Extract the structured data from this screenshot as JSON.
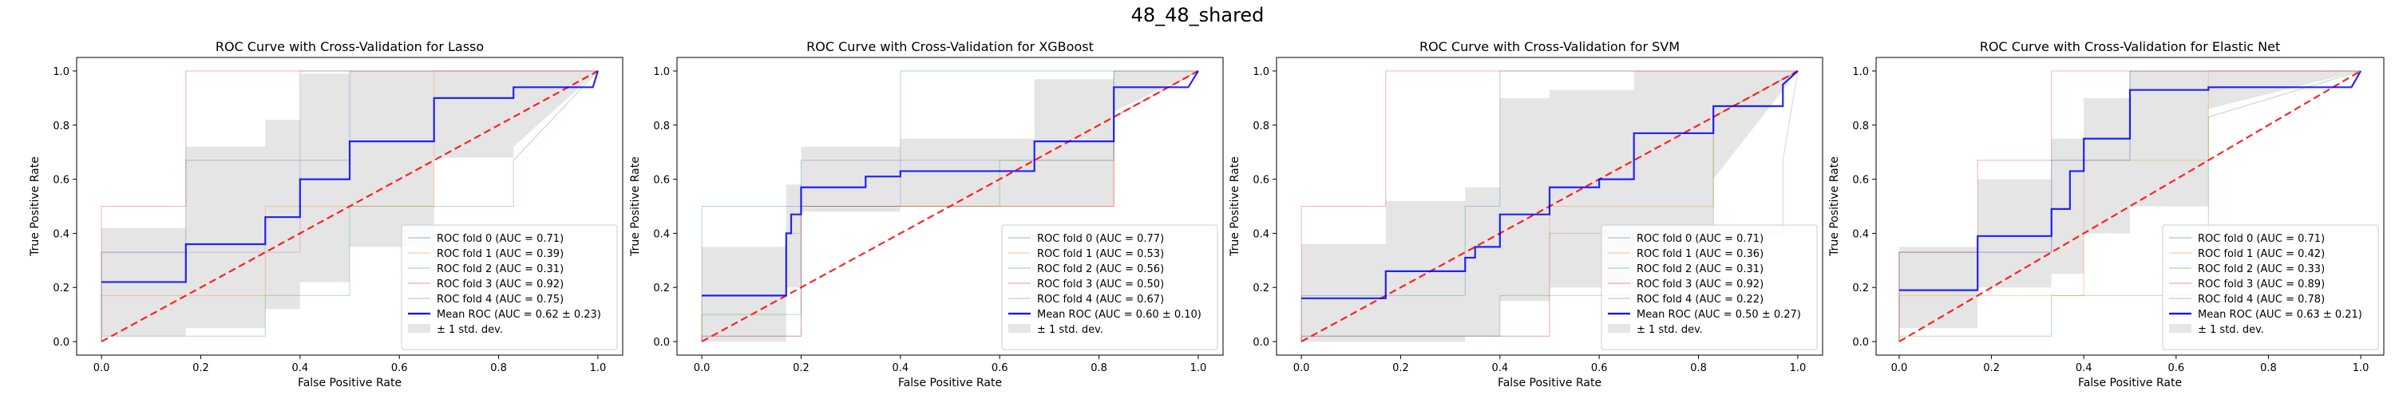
{
  "suptitle": "48_48_shared",
  "colors": {
    "folds": [
      "#1f77b4",
      "#ff7f0e",
      "#2ca02c",
      "#d62728",
      "#9467bd"
    ],
    "mean": "#0000ff",
    "chance": "#ff0000",
    "band": "#bdbdbd"
  },
  "chart_data": [
    {
      "type": "line",
      "title": "ROC Curve with Cross-Validation for Lasso",
      "xlabel": "False Positive Rate",
      "ylabel": "True Positive Rate",
      "xlim": [
        -0.05,
        1.05
      ],
      "ylim": [
        -0.05,
        1.05
      ],
      "ticks": [
        0.0,
        0.2,
        0.4,
        0.6,
        0.8,
        1.0
      ],
      "tick_labels": [
        "0.0",
        "0.2",
        "0.4",
        "0.6",
        "0.8",
        "1.0"
      ],
      "grid": false,
      "legend_position": "lower-right",
      "folds": [
        {
          "name": "ROC fold 0 (AUC = 0.71)",
          "x": [
            0,
            0,
            0.17,
            0.17,
            0.5,
            0.5,
            1
          ],
          "y": [
            0,
            0.33,
            0.33,
            0.67,
            0.67,
            1,
            1
          ]
        },
        {
          "name": "ROC fold 1 (AUC = 0.39)",
          "x": [
            0,
            0,
            0.33,
            0.33,
            0.67,
            0.67,
            1
          ],
          "y": [
            0,
            0.17,
            0.17,
            0.5,
            0.5,
            1,
            1
          ]
        },
        {
          "name": "ROC fold 2 (AUC = 0.31)",
          "x": [
            0,
            0,
            0.33,
            0.33,
            0.5,
            0.5,
            0.83,
            0.83,
            1
          ],
          "y": [
            0,
            0.02,
            0.02,
            0.17,
            0.17,
            0.5,
            0.5,
            0.67,
            1
          ]
        },
        {
          "name": "ROC fold 3 (AUC = 0.92)",
          "x": [
            0,
            0,
            0.17,
            0.17,
            1
          ],
          "y": [
            0,
            0.5,
            0.5,
            1,
            1
          ]
        },
        {
          "name": "ROC fold 4 (AUC = 0.75)",
          "x": [
            0,
            0,
            0.4,
            0.4,
            1
          ],
          "y": [
            0,
            0.33,
            0.33,
            1,
            1
          ]
        }
      ],
      "mean": {
        "name": "Mean ROC (AUC = 0.62 ± 0.23)",
        "x": [
          0,
          0.17,
          0.17,
          0.33,
          0.33,
          0.4,
          0.4,
          0.5,
          0.5,
          0.67,
          0.67,
          0.83,
          0.83,
          0.99,
          1.0
        ],
        "y": [
          0.22,
          0.22,
          0.36,
          0.36,
          0.46,
          0.46,
          0.6,
          0.6,
          0.74,
          0.74,
          0.9,
          0.9,
          0.94,
          0.94,
          1.0
        ]
      },
      "std_band": {
        "name": "± 1 std. dev.",
        "x": [
          0,
          0.17,
          0.17,
          0.33,
          0.33,
          0.4,
          0.4,
          0.5,
          0.5,
          0.67,
          0.67,
          0.83,
          0.83,
          1.0
        ],
        "lower": [
          0.02,
          0.02,
          0.05,
          0.05,
          0.12,
          0.12,
          0.22,
          0.22,
          0.35,
          0.35,
          0.68,
          0.68,
          0.72,
          1.0
        ],
        "upper": [
          0.42,
          0.42,
          0.72,
          0.72,
          0.82,
          0.82,
          0.99,
          0.99,
          1.0,
          1.0,
          1.0,
          1.0,
          1.0,
          1.0
        ]
      },
      "chance": {
        "x": [
          0,
          1
        ],
        "y": [
          0,
          1
        ]
      }
    },
    {
      "type": "line",
      "title": "ROC Curve with Cross-Validation for XGBoost",
      "xlabel": "False Positive Rate",
      "ylabel": "True Positive Rate",
      "xlim": [
        -0.05,
        1.05
      ],
      "ylim": [
        -0.05,
        1.05
      ],
      "ticks": [
        0.0,
        0.2,
        0.4,
        0.6,
        0.8,
        1.0
      ],
      "tick_labels": [
        "0.0",
        "0.2",
        "0.4",
        "0.6",
        "0.8",
        "1.0"
      ],
      "grid": false,
      "legend_position": "lower-right",
      "folds": [
        {
          "name": "ROC fold 0 (AUC = 0.77)",
          "x": [
            0,
            0,
            0.2,
            0.2,
            0.4,
            0.4,
            1
          ],
          "y": [
            0,
            0.5,
            0.5,
            0.67,
            0.67,
            1,
            1
          ]
        },
        {
          "name": "ROC fold 1 (AUC = 0.53)",
          "x": [
            0,
            0,
            0.17,
            0.17,
            0.2,
            0.2,
            0.83,
            0.83,
            1
          ],
          "y": [
            0,
            0.17,
            0.17,
            0.4,
            0.4,
            0.5,
            0.5,
            0.83,
            1
          ]
        },
        {
          "name": "ROC fold 2 (AUC = 0.56)",
          "x": [
            0,
            0,
            0.2,
            0.2,
            0.6,
            0.6,
            0.83,
            0.83,
            1
          ],
          "y": [
            0,
            0.1,
            0.1,
            0.5,
            0.5,
            0.67,
            0.67,
            1,
            1
          ]
        },
        {
          "name": "ROC fold 3 (AUC = 0.50)",
          "x": [
            0,
            0,
            0.2,
            0.2,
            0.83,
            0.83,
            1
          ],
          "y": [
            0,
            0.02,
            0.02,
            0.5,
            0.5,
            0.83,
            1
          ]
        },
        {
          "name": "ROC fold 4 (AUC = 0.67)",
          "x": [
            0,
            0,
            0.2,
            0.2,
            0.4,
            0.4,
            0.83,
            0.83,
            1
          ],
          "y": [
            0,
            0.02,
            0.02,
            0.5,
            0.5,
            0.67,
            0.67,
            1,
            1
          ]
        }
      ],
      "mean": {
        "name": "Mean ROC (AUC = 0.60 ± 0.10)",
        "x": [
          0,
          0.17,
          0.17,
          0.18,
          0.18,
          0.2,
          0.2,
          0.33,
          0.33,
          0.4,
          0.4,
          0.67,
          0.67,
          0.83,
          0.83,
          0.98,
          1.0
        ],
        "y": [
          0.17,
          0.17,
          0.4,
          0.4,
          0.47,
          0.47,
          0.57,
          0.57,
          0.61,
          0.61,
          0.63,
          0.63,
          0.74,
          0.74,
          0.94,
          0.94,
          1.0
        ]
      },
      "std_band": {
        "name": "± 1 std. dev.",
        "x": [
          0,
          0.17,
          0.17,
          0.2,
          0.2,
          0.4,
          0.4,
          0.67,
          0.67,
          0.83,
          0.83,
          1.0
        ],
        "lower": [
          0.0,
          0.0,
          0.2,
          0.2,
          0.48,
          0.48,
          0.5,
          0.5,
          0.5,
          0.5,
          0.85,
          1.0
        ],
        "upper": [
          0.35,
          0.35,
          0.58,
          0.58,
          0.72,
          0.72,
          0.75,
          0.75,
          0.97,
          0.97,
          1.0,
          1.0
        ]
      },
      "chance": {
        "x": [
          0,
          1
        ],
        "y": [
          0,
          1
        ]
      }
    },
    {
      "type": "line",
      "title": "ROC Curve with Cross-Validation for SVM",
      "xlabel": "False Positive Rate",
      "ylabel": "True Positive Rate",
      "xlim": [
        -0.05,
        1.05
      ],
      "ylim": [
        -0.05,
        1.05
      ],
      "ticks": [
        0.0,
        0.2,
        0.4,
        0.6,
        0.8,
        1.0
      ],
      "tick_labels": [
        "0.0",
        "0.2",
        "0.4",
        "0.6",
        "0.8",
        "1.0"
      ],
      "grid": false,
      "legend_position": "lower-right",
      "folds": [
        {
          "name": "ROC fold 0 (AUC = 0.71)",
          "x": [
            0,
            0,
            0.33,
            0.33,
            0.4,
            0.4,
            1
          ],
          "y": [
            0,
            0.17,
            0.17,
            0.5,
            0.5,
            1,
            1
          ]
        },
        {
          "name": "ROC fold 1 (AUC = 0.36)",
          "x": [
            0,
            0,
            0.5,
            0.5,
            0.83,
            0.83,
            1
          ],
          "y": [
            0,
            0.02,
            0.02,
            0.5,
            0.5,
            0.83,
            1
          ]
        },
        {
          "name": "ROC fold 2 (AUC = 0.31)",
          "x": [
            0,
            0,
            0.4,
            0.4,
            0.83,
            0.83,
            1
          ],
          "y": [
            0,
            0.02,
            0.02,
            0.17,
            0.17,
            0.83,
            1
          ]
        },
        {
          "name": "ROC fold 3 (AUC = 0.92)",
          "x": [
            0,
            0,
            0.17,
            0.17,
            1
          ],
          "y": [
            0,
            0.5,
            0.5,
            1,
            1
          ]
        },
        {
          "name": "ROC fold 4 (AUC = 0.22)",
          "x": [
            0,
            0,
            0.5,
            0.5,
            0.97,
            0.97,
            1
          ],
          "y": [
            0,
            0.02,
            0.02,
            0.4,
            0.4,
            0.67,
            1
          ]
        }
      ],
      "mean": {
        "name": "Mean ROC (AUC = 0.50 ± 0.27)",
        "x": [
          0,
          0.17,
          0.17,
          0.33,
          0.33,
          0.35,
          0.35,
          0.4,
          0.4,
          0.5,
          0.5,
          0.6,
          0.6,
          0.67,
          0.67,
          0.83,
          0.83,
          0.97,
          0.97,
          1.0
        ],
        "y": [
          0.16,
          0.16,
          0.26,
          0.26,
          0.31,
          0.31,
          0.35,
          0.35,
          0.47,
          0.47,
          0.57,
          0.57,
          0.6,
          0.6,
          0.77,
          0.77,
          0.87,
          0.87,
          0.95,
          1.0
        ]
      },
      "std_band": {
        "name": "± 1 std. dev.",
        "x": [
          0,
          0.17,
          0.17,
          0.33,
          0.33,
          0.4,
          0.4,
          0.5,
          0.5,
          0.67,
          0.67,
          0.83,
          0.83,
          1.0
        ],
        "lower": [
          0.0,
          0.0,
          0.0,
          0.0,
          0.02,
          0.02,
          0.15,
          0.15,
          0.2,
          0.2,
          0.38,
          0.38,
          0.6,
          1.0
        ],
        "upper": [
          0.36,
          0.36,
          0.52,
          0.52,
          0.57,
          0.57,
          0.9,
          0.9,
          0.93,
          0.93,
          1.0,
          1.0,
          1.0,
          1.0
        ]
      },
      "chance": {
        "x": [
          0,
          1
        ],
        "y": [
          0,
          1
        ]
      }
    },
    {
      "type": "line",
      "title": "ROC Curve with Cross-Validation for Elastic Net",
      "xlabel": "False Positive Rate",
      "ylabel": "True Positive Rate",
      "xlim": [
        -0.05,
        1.05
      ],
      "ylim": [
        -0.05,
        1.05
      ],
      "ticks": [
        0.0,
        0.2,
        0.4,
        0.6,
        0.8,
        1.0
      ],
      "tick_labels": [
        "0.0",
        "0.2",
        "0.4",
        "0.6",
        "0.8",
        "1.0"
      ],
      "grid": false,
      "legend_position": "lower-right",
      "folds": [
        {
          "name": "ROC fold 0 (AUC = 0.71)",
          "x": [
            0,
            0,
            0.33,
            0.33,
            0.5,
            0.5,
            1
          ],
          "y": [
            0,
            0.33,
            0.33,
            0.67,
            0.67,
            1,
            1
          ]
        },
        {
          "name": "ROC fold 1 (AUC = 0.42)",
          "x": [
            0,
            0,
            0.4,
            0.4,
            0.67,
            0.67,
            1
          ],
          "y": [
            0,
            0.17,
            0.17,
            0.67,
            0.67,
            1,
            1
          ]
        },
        {
          "name": "ROC fold 2 (AUC = 0.33)",
          "x": [
            0,
            0,
            0.33,
            0.33,
            0.67,
            0.67,
            1
          ],
          "y": [
            0,
            0.02,
            0.02,
            0.17,
            0.17,
            0.83,
            1
          ]
        },
        {
          "name": "ROC fold 3 (AUC = 0.89)",
          "x": [
            0,
            0,
            0.17,
            0.17,
            0.33,
            0.33,
            1
          ],
          "y": [
            0,
            0.33,
            0.33,
            0.67,
            0.67,
            1,
            1
          ]
        },
        {
          "name": "ROC fold 4 (AUC = 0.78)",
          "x": [
            0,
            0,
            0.33,
            0.33,
            0.5,
            0.5,
            1
          ],
          "y": [
            0,
            0.33,
            0.33,
            0.67,
            0.67,
            1,
            1
          ]
        }
      ],
      "mean": {
        "name": "Mean ROC (AUC = 0.63 ± 0.21)",
        "x": [
          0,
          0.17,
          0.17,
          0.33,
          0.33,
          0.37,
          0.37,
          0.4,
          0.4,
          0.5,
          0.5,
          0.67,
          0.67,
          0.98,
          1.0
        ],
        "y": [
          0.19,
          0.19,
          0.39,
          0.39,
          0.49,
          0.49,
          0.63,
          0.63,
          0.75,
          0.75,
          0.93,
          0.93,
          0.94,
          0.94,
          1.0
        ]
      },
      "std_band": {
        "name": "± 1 std. dev.",
        "x": [
          0,
          0.17,
          0.17,
          0.33,
          0.33,
          0.4,
          0.4,
          0.5,
          0.5,
          0.67,
          0.67,
          1.0
        ],
        "lower": [
          0.05,
          0.05,
          0.2,
          0.2,
          0.25,
          0.25,
          0.4,
          0.4,
          0.5,
          0.5,
          0.86,
          1.0
        ],
        "upper": [
          0.35,
          0.35,
          0.6,
          0.6,
          0.75,
          0.75,
          0.9,
          0.9,
          1.0,
          1.0,
          1.0,
          1.0
        ]
      },
      "chance": {
        "x": [
          0,
          1
        ],
        "y": [
          0,
          1
        ]
      }
    }
  ]
}
